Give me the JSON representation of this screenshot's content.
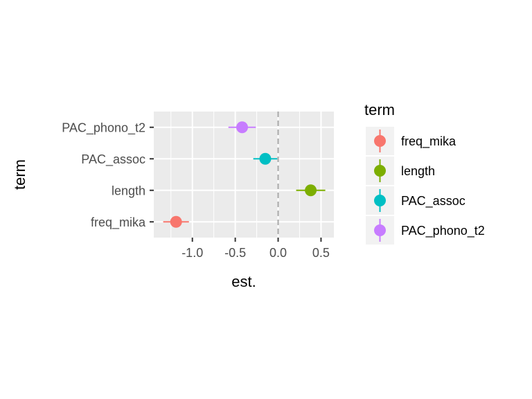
{
  "chart_data": {
    "type": "scatter",
    "title": "",
    "xlabel": "est.",
    "ylabel": "term",
    "xlim": [
      -1.45,
      0.65
    ],
    "x_ticks": [
      -1.0,
      -0.5,
      0.0,
      0.5
    ],
    "x_tick_labels": [
      "-1.0",
      "-0.5",
      "0.0",
      "0.5"
    ],
    "categories": [
      "freq_mika",
      "length",
      "PAC_assoc",
      "PAC_phono_t2"
    ],
    "reference_line": {
      "x": 0,
      "style": "dashed",
      "color": "#aaaaaa"
    },
    "grid": true,
    "legend": {
      "title": "term",
      "placement": "right"
    },
    "points": [
      {
        "term": "freq_mika",
        "estimate": -1.19,
        "low": -1.34,
        "high": -1.04,
        "color": "#F8766D"
      },
      {
        "term": "length",
        "estimate": 0.38,
        "low": 0.21,
        "high": 0.55,
        "color": "#7CAE00"
      },
      {
        "term": "PAC_assoc",
        "estimate": -0.15,
        "low": -0.29,
        "high": -0.01,
        "color": "#00BFC4"
      },
      {
        "term": "PAC_phono_t2",
        "estimate": -0.42,
        "low": -0.58,
        "high": -0.26,
        "color": "#C77CFF"
      }
    ]
  }
}
